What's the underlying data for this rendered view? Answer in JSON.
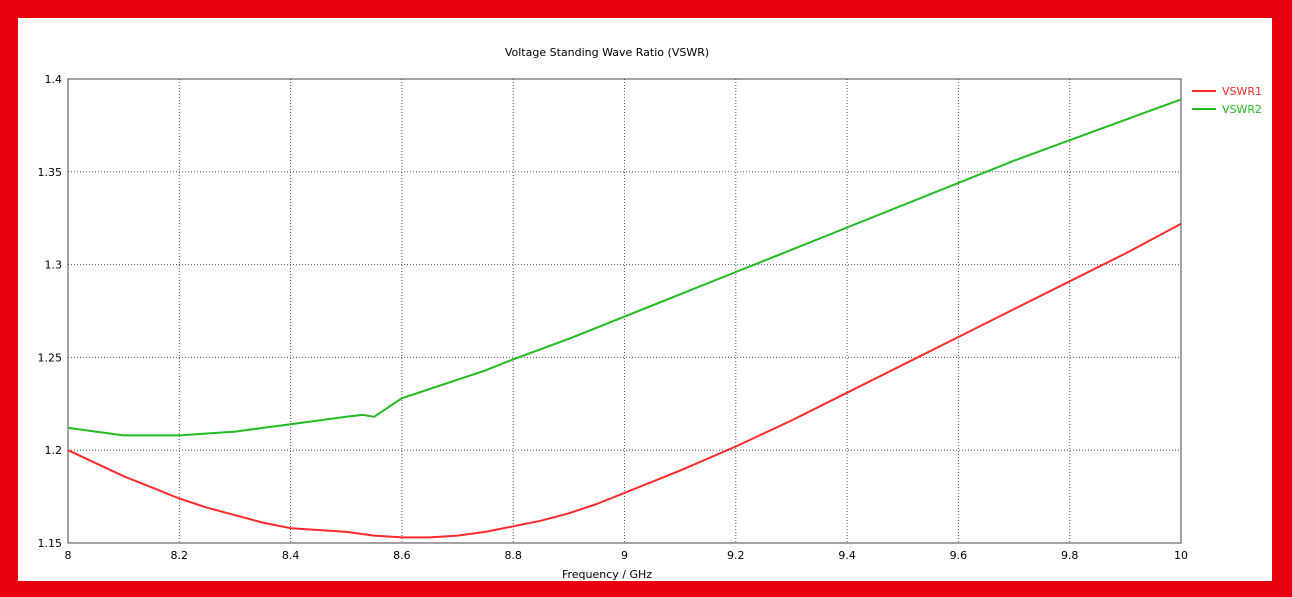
{
  "colors": {
    "border": "#e8000d",
    "background": "#ffffff",
    "grid": "#555555"
  },
  "chart_data": {
    "type": "line",
    "title": "Voltage Standing Wave Ratio (VSWR)",
    "xlabel": "Frequency / GHz",
    "ylabel": "",
    "xlim": [
      8,
      10
    ],
    "ylim": [
      1.15,
      1.4
    ],
    "xticks": [
      8,
      8.2,
      8.4,
      8.6,
      8.8,
      9,
      9.2,
      9.4,
      9.6,
      9.8,
      10
    ],
    "xtick_labels": [
      "8",
      "8.2",
      "8.4",
      "8.6",
      "8.8",
      "9",
      "9.2",
      "9.4",
      "9.6",
      "9.8",
      "10"
    ],
    "yticks": [
      1.15,
      1.2,
      1.25,
      1.3,
      1.35,
      1.4
    ],
    "ytick_labels": [
      "1.15",
      "1.2",
      "1.25",
      "1.3",
      "1.35",
      "1.4"
    ],
    "grid": true,
    "legend_position": "right",
    "series": [
      {
        "name": "VSWR1",
        "color": "#ff2a2a",
        "x": [
          8.0,
          8.05,
          8.1,
          8.15,
          8.2,
          8.25,
          8.3,
          8.35,
          8.4,
          8.45,
          8.5,
          8.55,
          8.6,
          8.65,
          8.7,
          8.75,
          8.8,
          8.85,
          8.9,
          8.95,
          9.0,
          9.1,
          9.2,
          9.3,
          9.4,
          9.5,
          9.6,
          9.7,
          9.8,
          9.9,
          10.0
        ],
        "y": [
          1.2,
          1.193,
          1.186,
          1.18,
          1.174,
          1.169,
          1.165,
          1.161,
          1.158,
          1.157,
          1.156,
          1.154,
          1.153,
          1.153,
          1.154,
          1.156,
          1.159,
          1.162,
          1.166,
          1.171,
          1.177,
          1.189,
          1.202,
          1.216,
          1.231,
          1.246,
          1.261,
          1.276,
          1.291,
          1.306,
          1.322
        ]
      },
      {
        "name": "VSWR2",
        "color": "#22bb22",
        "x": [
          8.0,
          8.05,
          8.1,
          8.15,
          8.2,
          8.25,
          8.3,
          8.35,
          8.4,
          8.45,
          8.5,
          8.53,
          8.55,
          8.57,
          8.6,
          8.65,
          8.7,
          8.75,
          8.8,
          8.9,
          9.0,
          9.1,
          9.2,
          9.3,
          9.4,
          9.5,
          9.6,
          9.7,
          9.8,
          9.9,
          10.0
        ],
        "y": [
          1.212,
          1.21,
          1.208,
          1.208,
          1.208,
          1.209,
          1.21,
          1.212,
          1.214,
          1.216,
          1.218,
          1.219,
          1.218,
          1.222,
          1.228,
          1.233,
          1.238,
          1.243,
          1.249,
          1.26,
          1.272,
          1.284,
          1.296,
          1.308,
          1.32,
          1.332,
          1.344,
          1.356,
          1.367,
          1.378,
          1.389
        ]
      }
    ]
  }
}
